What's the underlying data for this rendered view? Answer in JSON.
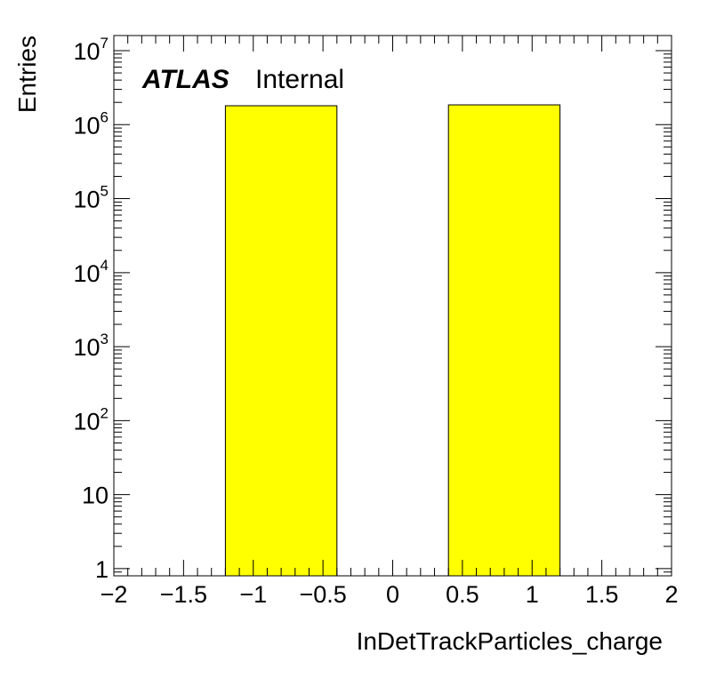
{
  "chart_data": {
    "type": "bar",
    "title": "",
    "xlabel": "InDetTrackParticles_charge",
    "ylabel": "Entries",
    "xlim": [
      -2,
      2
    ],
    "ylim": [
      0.8,
      16000000
    ],
    "y_scale": "log",
    "bin_edges": [
      -1.2,
      -0.4,
      0.4,
      1.2
    ],
    "values": [
      1800000,
      0,
      1850000
    ],
    "bar_color": "#ffff00",
    "x_ticks": [
      -2,
      -1.5,
      -1,
      -0.5,
      0,
      0.5,
      1,
      1.5,
      2
    ],
    "x_tick_labels": [
      "−2",
      "−1.5",
      "−1",
      "−0.5",
      "0",
      "0.5",
      "1",
      "1.5",
      "2"
    ],
    "y_tick_labels": [
      {
        "value": 1,
        "base": "1",
        "exp": ""
      },
      {
        "value": 10,
        "base": "10",
        "exp": ""
      },
      {
        "value": 100,
        "base": "10",
        "exp": "2"
      },
      {
        "value": 1000,
        "base": "10",
        "exp": "3"
      },
      {
        "value": 10000,
        "base": "10",
        "exp": "4"
      },
      {
        "value": 100000,
        "base": "10",
        "exp": "5"
      },
      {
        "value": 1000000,
        "base": "10",
        "exp": "6"
      },
      {
        "value": 10000000,
        "base": "10",
        "exp": "7"
      }
    ],
    "annotation": {
      "experiment": "ATLAS",
      "status": "Internal"
    }
  }
}
